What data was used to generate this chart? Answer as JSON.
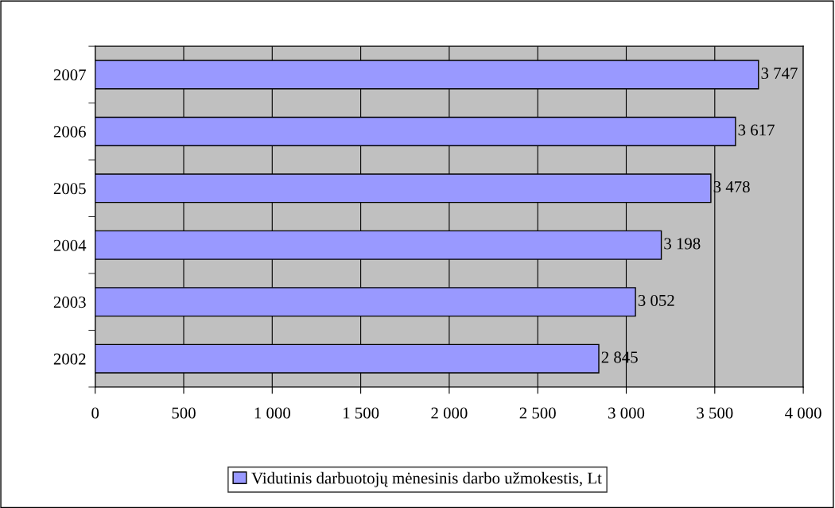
{
  "chart_data": {
    "type": "bar",
    "orientation": "horizontal",
    "categories": [
      "2007",
      "2006",
      "2005",
      "2004",
      "2003",
      "2002"
    ],
    "series": [
      {
        "name": "Vidutinis darbuotojų mėnesinis darbo užmokestis, Lt",
        "color": "#9999ff",
        "values": [
          3747,
          3617,
          3478,
          3198,
          3052,
          2845
        ],
        "value_labels": [
          "3 747",
          "3 617",
          "3 478",
          "3 198",
          "3 052",
          "2 845"
        ]
      }
    ],
    "xlim": [
      0,
      4000
    ],
    "xticks": [
      0,
      500,
      {
        "value": 1000,
        "label": "1 000"
      },
      {
        "value": 1500,
        "label": "1 500"
      },
      {
        "value": 2000,
        "label": "2 000"
      },
      {
        "value": 2500,
        "label": "2 500"
      },
      {
        "value": 3000,
        "label": "3 000"
      },
      {
        "value": 3500,
        "label": "3 500"
      },
      {
        "value": 4000,
        "label": "4 000"
      }
    ],
    "grid": "x",
    "legend": "bottom"
  }
}
